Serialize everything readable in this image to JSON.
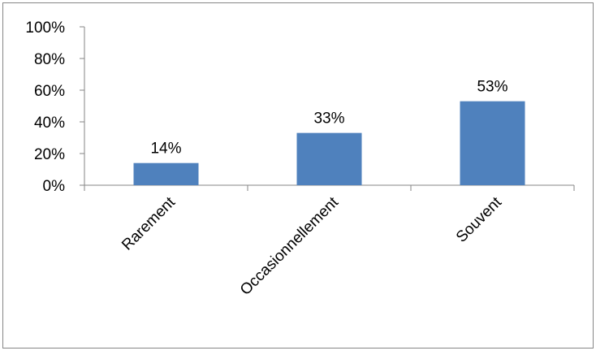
{
  "chart_data": {
    "type": "bar",
    "categories": [
      "Rarement",
      "Occasionnellement",
      "Souvent"
    ],
    "values": [
      14,
      33,
      53
    ],
    "data_labels": [
      "14%",
      "33%",
      "53%"
    ],
    "ylim": [
      0,
      100
    ],
    "yticks": [
      0,
      20,
      40,
      60,
      80,
      100
    ],
    "ytick_labels": [
      "0%",
      "20%",
      "40%",
      "60%",
      "80%",
      "100%"
    ],
    "category_label_rotation": -45,
    "grid": false,
    "legend": "none",
    "bar_color": "#4F81BD",
    "axis_color": "#868686",
    "border_color": "#868686"
  }
}
